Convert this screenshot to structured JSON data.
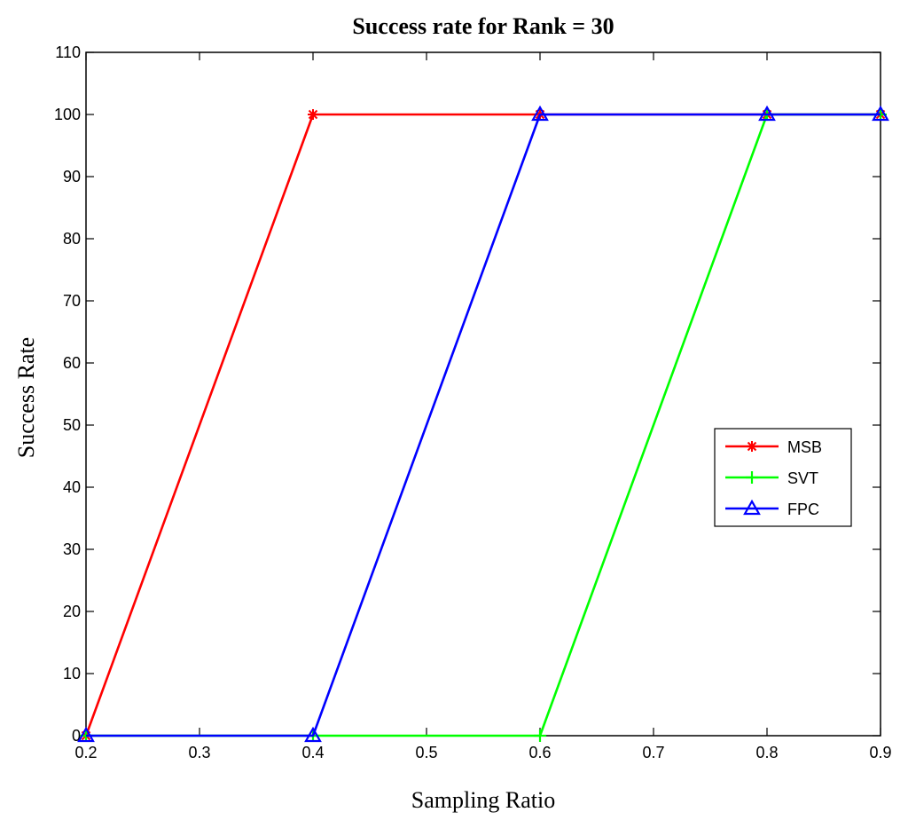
{
  "chart_data": {
    "type": "line",
    "title": "Success rate for Rank = 30",
    "xlabel": "Sampling Ratio",
    "ylabel": "Success Rate",
    "xlim": [
      0.2,
      0.9
    ],
    "ylim": [
      0,
      110
    ],
    "x_ticks": [
      "0.2",
      "0.3",
      "0.4",
      "0.5",
      "0.6",
      "0.7",
      "0.8",
      "0.9"
    ],
    "y_ticks": [
      "0",
      "10",
      "20",
      "30",
      "40",
      "50",
      "60",
      "70",
      "80",
      "90",
      "100",
      "110"
    ],
    "x": [
      0.2,
      0.4,
      0.6,
      0.8,
      0.9
    ],
    "series": [
      {
        "name": "MSB",
        "values": [
          0,
          100,
          100,
          100,
          100
        ],
        "color": "#ff0000",
        "marker": "star"
      },
      {
        "name": "SVT",
        "values": [
          0,
          0,
          0,
          100,
          100
        ],
        "color": "#00ff00",
        "marker": "plus"
      },
      {
        "name": "FPC",
        "values": [
          0,
          0,
          100,
          100,
          100
        ],
        "color": "#0000ff",
        "marker": "triangle"
      }
    ],
    "grid": false,
    "legend_position": "right"
  }
}
